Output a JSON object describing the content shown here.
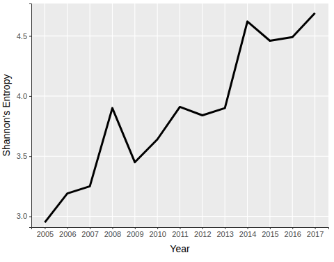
{
  "chart_data": {
    "type": "line",
    "x_label": "Year",
    "y_label": "Shannon's Entropy",
    "x": [
      2005,
      2006,
      2007,
      2008,
      2009,
      2010,
      2011,
      2012,
      2013,
      2014,
      2015,
      2016,
      2017
    ],
    "values": [
      2.95,
      3.19,
      3.25,
      3.9,
      3.45,
      3.64,
      3.91,
      3.84,
      3.9,
      4.62,
      4.46,
      4.49,
      4.69
    ],
    "color": "#000000",
    "xlim": [
      2004.4,
      2017.6
    ],
    "xticks": [
      2005,
      2006,
      2007,
      2008,
      2009,
      2010,
      2011,
      2012,
      2013,
      2014,
      2015,
      2016,
      2017
    ],
    "ylim": [
      2.91,
      4.77
    ],
    "yticks": [
      {
        "value": 3,
        "label": "3.0"
      },
      3.5,
      {
        "value": 4,
        "label": "4.0"
      },
      4.5
    ],
    "grid": true
  }
}
